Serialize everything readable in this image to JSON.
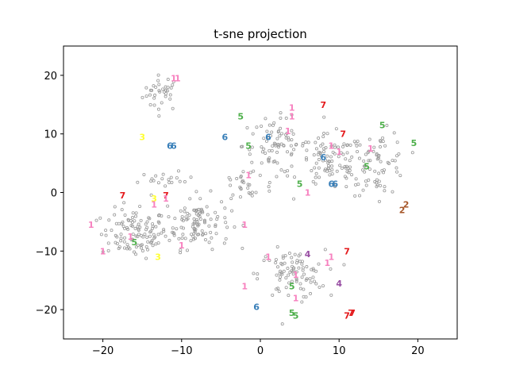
{
  "chart_data": {
    "type": "scatter",
    "title": "t-sne projection",
    "xlabel": "",
    "ylabel": "",
    "xlim": [
      -25,
      25
    ],
    "ylim": [
      -25,
      25
    ],
    "x_ticks": [
      -20,
      -10,
      0,
      10,
      20
    ],
    "y_ticks": [
      20,
      10,
      0,
      -10,
      -20
    ],
    "x_tick_labels": [
      "−20",
      "−10",
      "0",
      "10",
      "20"
    ],
    "y_tick_labels": [
      "20",
      "10",
      "0",
      "−10",
      "−20"
    ],
    "grid": false,
    "legend": "none",
    "point_color": "#9a9a9a",
    "digit_colors": {
      "1": "#f781bf",
      "2": "#a65628",
      "3": "#ffff33",
      "4": "#984ea3",
      "5": "#4daf4a",
      "6": "#377eb8",
      "7": "#e41a1c"
    },
    "point_clusters": [
      {
        "center": [
          -12.5,
          17
        ],
        "spread": [
          2.0,
          2.5
        ],
        "count": 35
      },
      {
        "center": [
          -16,
          -7
        ],
        "spread": [
          3.5,
          3.5
        ],
        "count": 110
      },
      {
        "center": [
          -8,
          -5
        ],
        "spread": [
          3.5,
          3.8
        ],
        "count": 110
      },
      {
        "center": [
          -12,
          2
        ],
        "spread": [
          3.0,
          1.2
        ],
        "count": 20
      },
      {
        "center": [
          2,
          8
        ],
        "spread": [
          3.5,
          4.0
        ],
        "count": 85
      },
      {
        "center": [
          9,
          5
        ],
        "spread": [
          3.5,
          4.0
        ],
        "count": 90
      },
      {
        "center": [
          15,
          5
        ],
        "spread": [
          3.0,
          4.5
        ],
        "count": 70
      },
      {
        "center": [
          4,
          -14
        ],
        "spread": [
          3.5,
          3.5
        ],
        "count": 90
      },
      {
        "center": [
          -2,
          1
        ],
        "spread": [
          3.0,
          3.0
        ],
        "count": 25
      }
    ],
    "labels": [
      {
        "text": "1",
        "x": -11.0,
        "y": 19.5
      },
      {
        "text": "1",
        "x": -10.5,
        "y": 19.5
      },
      {
        "text": "3",
        "x": -15.0,
        "y": 9.5
      },
      {
        "text": "6",
        "x": -11.5,
        "y": 8.0
      },
      {
        "text": "6",
        "x": -11.0,
        "y": 8.0
      },
      {
        "text": "6",
        "x": -4.5,
        "y": 9.5
      },
      {
        "text": "5",
        "x": -2.5,
        "y": 13.0
      },
      {
        "text": "5",
        "x": -1.5,
        "y": 8.0
      },
      {
        "text": "6",
        "x": 1.0,
        "y": 9.5
      },
      {
        "text": "1",
        "x": 4.0,
        "y": 14.5
      },
      {
        "text": "1",
        "x": 4.0,
        "y": 13.0
      },
      {
        "text": "7",
        "x": 8.0,
        "y": 15.0
      },
      {
        "text": "1",
        "x": 3.5,
        "y": 10.5
      },
      {
        "text": "7",
        "x": 10.5,
        "y": 10.0
      },
      {
        "text": "1",
        "x": 9.0,
        "y": 8.0
      },
      {
        "text": "1",
        "x": 10.0,
        "y": 7.0
      },
      {
        "text": "6",
        "x": 8.0,
        "y": 6.0
      },
      {
        "text": "5",
        "x": 15.5,
        "y": 11.5
      },
      {
        "text": "1",
        "x": 14.0,
        "y": 7.5
      },
      {
        "text": "5",
        "x": 19.5,
        "y": 8.5
      },
      {
        "text": "5",
        "x": 13.5,
        "y": 4.5
      },
      {
        "text": "1",
        "x": -1.5,
        "y": 3.0
      },
      {
        "text": "5",
        "x": 5.0,
        "y": 1.5
      },
      {
        "text": "6",
        "x": 9.0,
        "y": 1.5
      },
      {
        "text": "6",
        "x": 9.5,
        "y": 1.5
      },
      {
        "text": "1",
        "x": 6.0,
        "y": 0.0
      },
      {
        "text": "2",
        "x": 18.5,
        "y": -2.0
      },
      {
        "text": "2",
        "x": 18.0,
        "y": -3.0
      },
      {
        "text": "7",
        "x": -17.5,
        "y": -0.5
      },
      {
        "text": "3",
        "x": -13.5,
        "y": -1.0
      },
      {
        "text": "1",
        "x": -13.5,
        "y": -2.0
      },
      {
        "text": "7",
        "x": -12.0,
        "y": -0.5
      },
      {
        "text": "1",
        "x": -12.0,
        "y": -1.0
      },
      {
        "text": "1",
        "x": -21.5,
        "y": -5.5
      },
      {
        "text": "1",
        "x": -20.0,
        "y": -10.0
      },
      {
        "text": "5",
        "x": -16.0,
        "y": -8.5
      },
      {
        "text": "1",
        "x": -16.5,
        "y": -7.5
      },
      {
        "text": "1",
        "x": -10.0,
        "y": -9.0
      },
      {
        "text": "3",
        "x": -13.0,
        "y": -11.0
      },
      {
        "text": "1",
        "x": -2.0,
        "y": -5.5
      },
      {
        "text": "4",
        "x": 6.0,
        "y": -10.5
      },
      {
        "text": "1",
        "x": 9.0,
        "y": -11.0
      },
      {
        "text": "7",
        "x": 11.0,
        "y": -10.0
      },
      {
        "text": "1",
        "x": 8.5,
        "y": -12.0
      },
      {
        "text": "1",
        "x": 1.0,
        "y": -11.0
      },
      {
        "text": "1",
        "x": 4.5,
        "y": -14.0
      },
      {
        "text": "4",
        "x": 10.0,
        "y": -15.5
      },
      {
        "text": "5",
        "x": 4.0,
        "y": -16.0
      },
      {
        "text": "1",
        "x": -2.0,
        "y": -16.0
      },
      {
        "text": "1",
        "x": 4.5,
        "y": -18.0
      },
      {
        "text": "6",
        "x": -0.5,
        "y": -19.5
      },
      {
        "text": "5",
        "x": 4.0,
        "y": -20.5
      },
      {
        "text": "5",
        "x": 4.5,
        "y": -21.0
      },
      {
        "text": "7",
        "x": 11.0,
        "y": -21.0
      },
      {
        "text": "7",
        "x": 11.5,
        "y": -20.5
      },
      {
        "text": "7",
        "x": 11.7,
        "y": -20.5
      }
    ]
  }
}
